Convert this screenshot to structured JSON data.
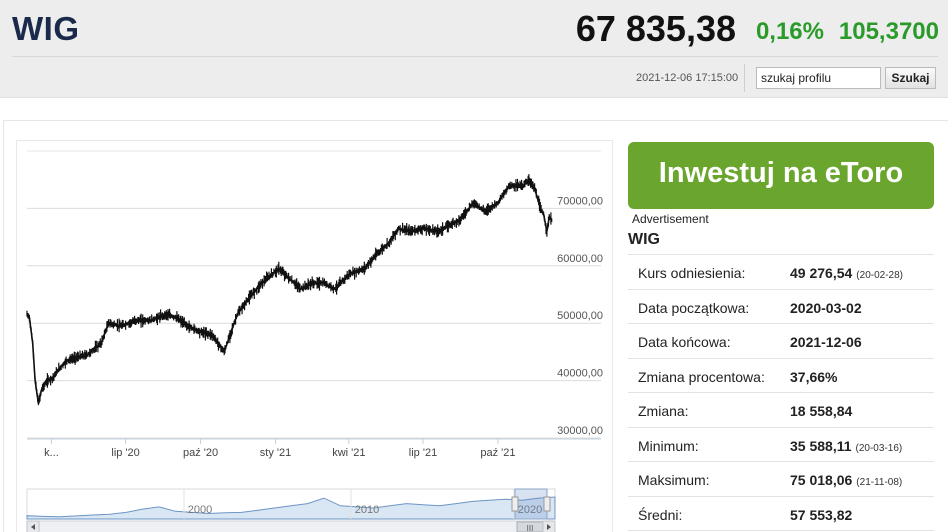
{
  "header": {
    "ticker": "WIG",
    "price": "67 835,38",
    "change_pct": "0,16%",
    "change_abs": "105,3700",
    "timestamp": "2021-12-06 17:15:00",
    "search_placeholder": "szukaj profilu",
    "search_button": "Szukaj"
  },
  "ad": {
    "cta_label": "Inwestuj na eToro",
    "label": "Advertisement"
  },
  "sidebar": {
    "title": "WIG",
    "stats": [
      {
        "label": "Kurs odniesienia:",
        "value": "49 276,54",
        "note": "(20-02-28)"
      },
      {
        "label": "Data początkowa:",
        "value": "2020-03-02",
        "note": ""
      },
      {
        "label": "Data końcowa:",
        "value": "2021-12-06",
        "note": ""
      },
      {
        "label": "Zmiana procentowa:",
        "value": "37,66%",
        "note": ""
      },
      {
        "label": "Zmiana:",
        "value": "18 558,84",
        "note": ""
      },
      {
        "label": "Minimum:",
        "value": "35 588,11",
        "note": "(20-03-16)"
      },
      {
        "label": "Maksimum:",
        "value": "75 018,06",
        "note": "(21-11-08)"
      },
      {
        "label": "Średni:",
        "value": "57 553,82",
        "note": ""
      }
    ]
  },
  "chart_data": {
    "type": "line",
    "style": "ohlc",
    "color": "#111111",
    "grid": true,
    "ylim": [
      30000,
      80000
    ],
    "yticks": [
      30000,
      40000,
      50000,
      60000,
      70000
    ],
    "ytick_labels": [
      "30000,00",
      "40000,00",
      "50000,00",
      "60000,00",
      "70000,00"
    ],
    "xlim": [
      "2020-03-02",
      "2021-12-10"
    ],
    "xticks": [
      {
        "date": "2020-04-01",
        "label": "k..."
      },
      {
        "date": "2020-07-01",
        "label": "lip '20"
      },
      {
        "date": "2020-10-01",
        "label": "paź '20"
      },
      {
        "date": "2021-01-01",
        "label": "sty '21"
      },
      {
        "date": "2021-04-01",
        "label": "kwi '21"
      },
      {
        "date": "2021-07-01",
        "label": "lip '21"
      },
      {
        "date": "2021-10-01",
        "label": "paź '21"
      }
    ],
    "series": [
      {
        "values": [
          {
            "x": "2020-03-02",
            "y": 51500
          },
          {
            "x": "2020-03-05",
            "y": 51000
          },
          {
            "x": "2020-03-09",
            "y": 46500
          },
          {
            "x": "2020-03-12",
            "y": 40000
          },
          {
            "x": "2020-03-16",
            "y": 36000
          },
          {
            "x": "2020-03-20",
            "y": 38500
          },
          {
            "x": "2020-03-27",
            "y": 40000
          },
          {
            "x": "2020-04-03",
            "y": 40500
          },
          {
            "x": "2020-04-10",
            "y": 42000
          },
          {
            "x": "2020-04-20",
            "y": 43500
          },
          {
            "x": "2020-05-01",
            "y": 44000
          },
          {
            "x": "2020-05-15",
            "y": 44500
          },
          {
            "x": "2020-06-01",
            "y": 46500
          },
          {
            "x": "2020-06-10",
            "y": 50000
          },
          {
            "x": "2020-06-25",
            "y": 49500
          },
          {
            "x": "2020-07-15",
            "y": 50500
          },
          {
            "x": "2020-08-01",
            "y": 50500
          },
          {
            "x": "2020-08-20",
            "y": 51500
          },
          {
            "x": "2020-09-01",
            "y": 51000
          },
          {
            "x": "2020-09-15",
            "y": 49500
          },
          {
            "x": "2020-10-01",
            "y": 48500
          },
          {
            "x": "2020-10-15",
            "y": 48000
          },
          {
            "x": "2020-10-30",
            "y": 45000
          },
          {
            "x": "2020-11-05",
            "y": 47500
          },
          {
            "x": "2020-11-15",
            "y": 51500
          },
          {
            "x": "2020-11-30",
            "y": 54500
          },
          {
            "x": "2020-12-15",
            "y": 57000
          },
          {
            "x": "2021-01-05",
            "y": 59500
          },
          {
            "x": "2021-01-20",
            "y": 57500
          },
          {
            "x": "2021-02-01",
            "y": 56000
          },
          {
            "x": "2021-02-15",
            "y": 57000
          },
          {
            "x": "2021-03-01",
            "y": 57000
          },
          {
            "x": "2021-03-15",
            "y": 56000
          },
          {
            "x": "2021-04-01",
            "y": 58500
          },
          {
            "x": "2021-04-20",
            "y": 59500
          },
          {
            "x": "2021-05-05",
            "y": 62000
          },
          {
            "x": "2021-05-20",
            "y": 64000
          },
          {
            "x": "2021-06-01",
            "y": 66500
          },
          {
            "x": "2021-06-15",
            "y": 66000
          },
          {
            "x": "2021-07-01",
            "y": 66500
          },
          {
            "x": "2021-07-20",
            "y": 66000
          },
          {
            "x": "2021-08-01",
            "y": 67000
          },
          {
            "x": "2021-08-15",
            "y": 68000
          },
          {
            "x": "2021-09-01",
            "y": 71000
          },
          {
            "x": "2021-09-15",
            "y": 69500
          },
          {
            "x": "2021-10-01",
            "y": 71000
          },
          {
            "x": "2021-10-15",
            "y": 74000
          },
          {
            "x": "2021-11-01",
            "y": 74000
          },
          {
            "x": "2021-11-08",
            "y": 75000
          },
          {
            "x": "2021-11-15",
            "y": 73500
          },
          {
            "x": "2021-11-22",
            "y": 70000
          },
          {
            "x": "2021-11-26",
            "y": 69000
          },
          {
            "x": "2021-11-30",
            "y": 66000
          },
          {
            "x": "2021-12-03",
            "y": 68500
          },
          {
            "x": "2021-12-06",
            "y": 67835
          }
        ]
      }
    ],
    "navigator": {
      "labels": [
        "2000",
        "2010",
        "2020"
      ],
      "scroll_glyph": "III"
    }
  }
}
